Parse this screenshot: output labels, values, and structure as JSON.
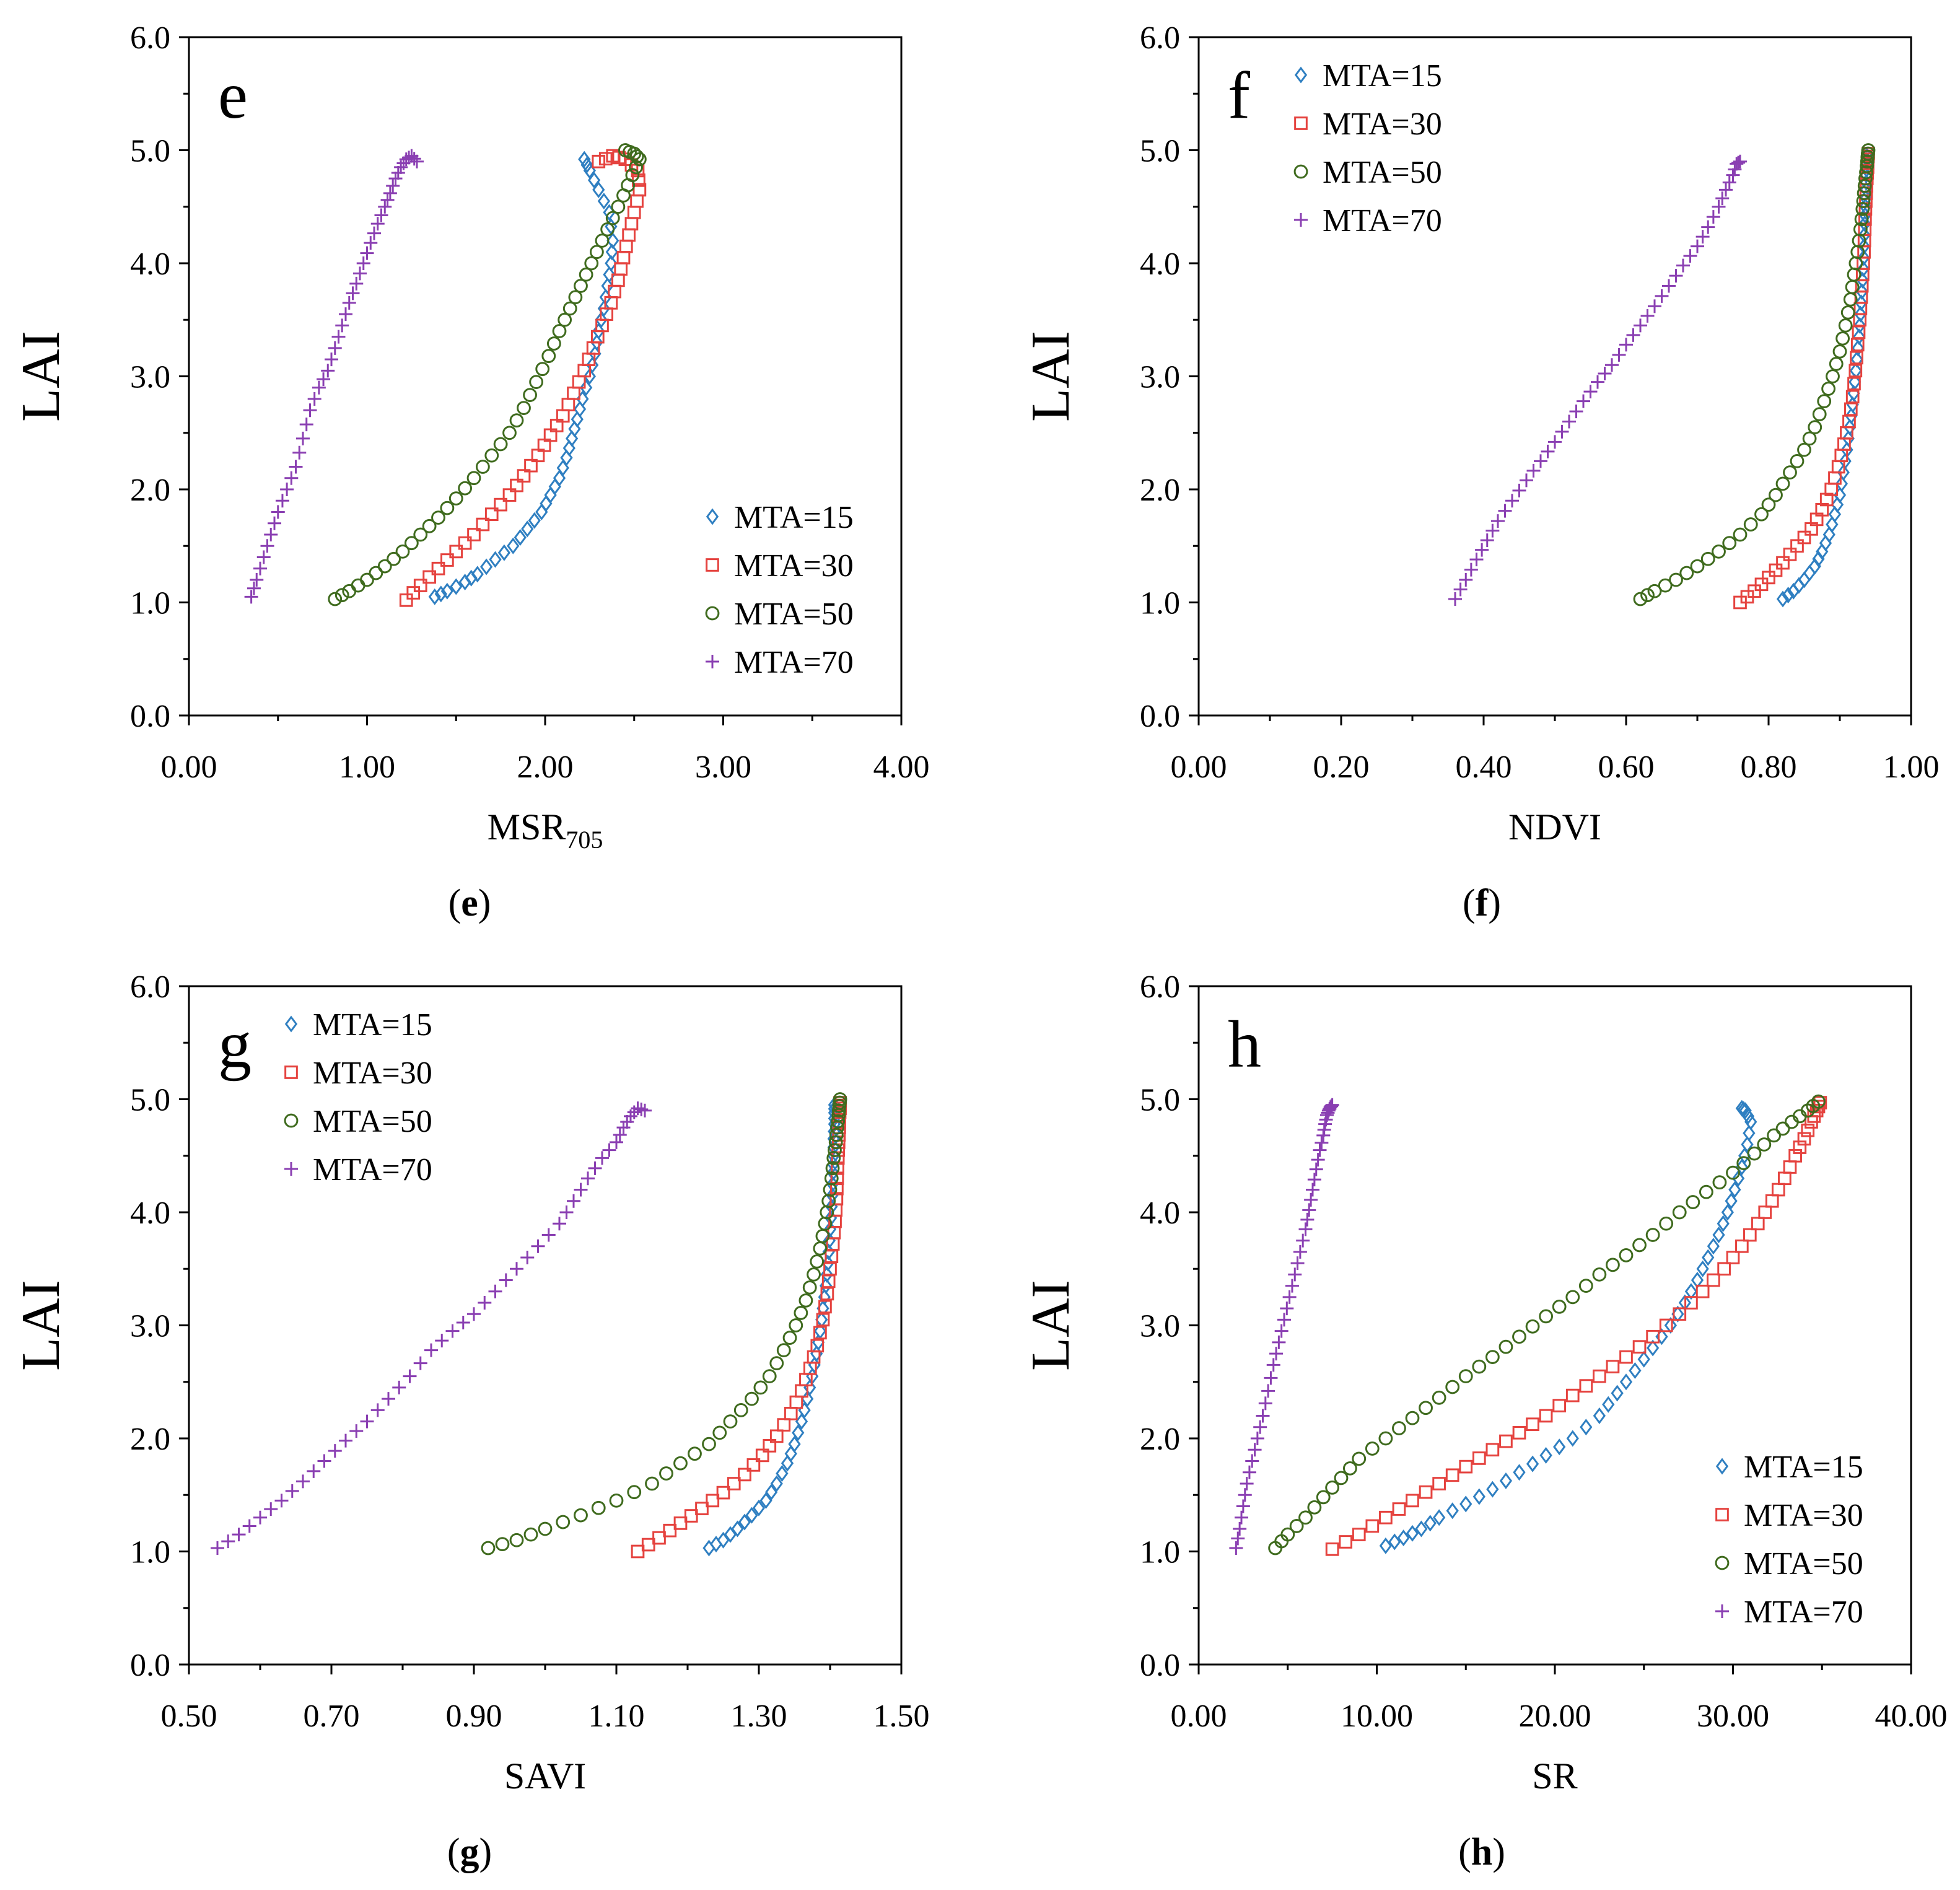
{
  "colors": {
    "MTA=15": "#2F7FC1",
    "MTA=30": "#E5433F",
    "MTA=50": "#3F6B1E",
    "MTA=70": "#8A3FB2"
  },
  "chart_data": [
    {
      "id": "e",
      "type": "scatter",
      "panel_letter": "e",
      "caption_letter": "e",
      "xlabel": "MSR",
      "xlabel_sub": "705",
      "ylabel": "LAI",
      "xlim": [
        0,
        4
      ],
      "ylim": [
        0,
        6
      ],
      "x_ticks": [
        "0.00",
        "1.00",
        "2.00",
        "3.00",
        "4.00"
      ],
      "y_ticks": [
        "0.0",
        "1.0",
        "2.0",
        "3.0",
        "4.0",
        "5.0",
        "6.0"
      ],
      "legend_position": "bottom-right",
      "series": [
        {
          "name": "MTA=15",
          "marker": "diamond",
          "x": [
            1.38,
            1.45,
            1.55,
            1.62,
            1.72,
            1.82,
            1.9,
            1.98,
            2.03,
            2.08,
            2.12,
            2.15,
            2.18,
            2.21,
            2.25,
            2.28,
            2.3,
            2.33,
            2.35,
            2.37,
            2.38,
            2.36,
            2.3,
            2.25,
            2.22
          ],
          "y": [
            1.05,
            1.1,
            1.18,
            1.25,
            1.38,
            1.5,
            1.65,
            1.8,
            1.95,
            2.1,
            2.28,
            2.45,
            2.62,
            2.8,
            3.0,
            3.2,
            3.4,
            3.6,
            3.8,
            4.0,
            4.2,
            4.45,
            4.65,
            4.82,
            4.92
          ]
        },
        {
          "name": "MTA=30",
          "marker": "square",
          "x": [
            1.22,
            1.3,
            1.4,
            1.5,
            1.6,
            1.7,
            1.8,
            1.88,
            1.96,
            2.03,
            2.1,
            2.16,
            2.22,
            2.27,
            2.32,
            2.37,
            2.41,
            2.44,
            2.47,
            2.5,
            2.53,
            2.52,
            2.45,
            2.38,
            2.3
          ],
          "y": [
            1.02,
            1.15,
            1.3,
            1.45,
            1.6,
            1.78,
            1.95,
            2.12,
            2.3,
            2.48,
            2.65,
            2.85,
            3.05,
            3.25,
            3.45,
            3.65,
            3.85,
            4.05,
            4.25,
            4.45,
            4.65,
            4.82,
            4.92,
            4.95,
            4.9
          ]
        },
        {
          "name": "MTA=50",
          "marker": "circle",
          "x": [
            0.82,
            0.9,
            1.0,
            1.1,
            1.2,
            1.3,
            1.4,
            1.5,
            1.6,
            1.7,
            1.8,
            1.88,
            1.95,
            2.02,
            2.08,
            2.14,
            2.2,
            2.26,
            2.32,
            2.38,
            2.44,
            2.49,
            2.53,
            2.5,
            2.45
          ],
          "y": [
            1.03,
            1.1,
            1.2,
            1.32,
            1.45,
            1.6,
            1.75,
            1.92,
            2.1,
            2.3,
            2.5,
            2.72,
            2.95,
            3.18,
            3.4,
            3.6,
            3.8,
            4.0,
            4.2,
            4.4,
            4.6,
            4.78,
            4.92,
            4.97,
            5.0
          ]
        },
        {
          "name": "MTA=70",
          "marker": "plus",
          "x": [
            0.35,
            0.38,
            0.42,
            0.46,
            0.5,
            0.55,
            0.6,
            0.64,
            0.68,
            0.73,
            0.78,
            0.82,
            0.86,
            0.9,
            0.94,
            0.98,
            1.02,
            1.06,
            1.1,
            1.13,
            1.16,
            1.19,
            1.22,
            1.25,
            1.28
          ],
          "y": [
            1.05,
            1.2,
            1.4,
            1.6,
            1.8,
            2.0,
            2.2,
            2.45,
            2.7,
            2.9,
            3.05,
            3.25,
            3.45,
            3.65,
            3.82,
            4.0,
            4.18,
            4.35,
            4.5,
            4.62,
            4.75,
            4.85,
            4.92,
            4.95,
            4.9
          ]
        }
      ]
    },
    {
      "id": "f",
      "type": "scatter",
      "panel_letter": "f",
      "caption_letter": "f",
      "xlabel": "NDVI",
      "xlabel_sub": "",
      "ylabel": "LAI",
      "xlim": [
        0,
        1
      ],
      "ylim": [
        0,
        6
      ],
      "x_ticks": [
        "0.00",
        "0.20",
        "0.40",
        "0.60",
        "0.80",
        "1.00"
      ],
      "y_ticks": [
        "0.0",
        "1.0",
        "2.0",
        "3.0",
        "4.0",
        "5.0",
        "6.0"
      ],
      "legend_position": "top-left",
      "series": [
        {
          "name": "MTA=15",
          "marker": "diamond",
          "x": [
            0.82,
            0.835,
            0.85,
            0.865,
            0.875,
            0.885,
            0.893,
            0.9,
            0.905,
            0.91,
            0.914,
            0.918,
            0.921,
            0.924,
            0.927,
            0.929,
            0.931,
            0.933,
            0.934,
            0.935,
            0.936,
            0.937,
            0.937,
            0.938,
            0.938
          ],
          "y": [
            1.03,
            1.1,
            1.2,
            1.32,
            1.45,
            1.6,
            1.78,
            1.95,
            2.15,
            2.35,
            2.55,
            2.75,
            2.95,
            3.15,
            3.35,
            3.55,
            3.75,
            3.95,
            4.15,
            4.35,
            4.5,
            4.65,
            4.78,
            4.88,
            4.95
          ]
        },
        {
          "name": "MTA=30",
          "marker": "square",
          "x": [
            0.76,
            0.78,
            0.8,
            0.82,
            0.84,
            0.86,
            0.875,
            0.888,
            0.898,
            0.906,
            0.913,
            0.918,
            0.922,
            0.925,
            0.928,
            0.93,
            0.932,
            0.934,
            0.935,
            0.936,
            0.937,
            0.938,
            0.939,
            0.939,
            0.94
          ],
          "y": [
            1.0,
            1.1,
            1.22,
            1.35,
            1.5,
            1.65,
            1.82,
            2.0,
            2.2,
            2.4,
            2.6,
            2.82,
            3.05,
            3.28,
            3.5,
            3.7,
            3.9,
            4.1,
            4.3,
            4.48,
            4.62,
            4.75,
            4.85,
            4.92,
            4.97
          ]
        },
        {
          "name": "MTA=50",
          "marker": "circle",
          "x": [
            0.62,
            0.64,
            0.67,
            0.7,
            0.73,
            0.76,
            0.79,
            0.81,
            0.83,
            0.85,
            0.865,
            0.878,
            0.89,
            0.9,
            0.908,
            0.915,
            0.92,
            0.925,
            0.929,
            0.932,
            0.934,
            0.936,
            0.938,
            0.939,
            0.94
          ],
          "y": [
            1.03,
            1.1,
            1.2,
            1.32,
            1.45,
            1.6,
            1.78,
            1.95,
            2.15,
            2.35,
            2.55,
            2.78,
            3.0,
            3.22,
            3.45,
            3.68,
            3.9,
            4.1,
            4.3,
            4.48,
            4.62,
            4.75,
            4.86,
            4.94,
            5.0
          ]
        },
        {
          "name": "MTA=70",
          "marker": "plus",
          "x": [
            0.36,
            0.375,
            0.39,
            0.405,
            0.42,
            0.44,
            0.46,
            0.48,
            0.5,
            0.52,
            0.54,
            0.56,
            0.58,
            0.6,
            0.62,
            0.64,
            0.66,
            0.68,
            0.7,
            0.715,
            0.73,
            0.74,
            0.75,
            0.755,
            0.76
          ],
          "y": [
            1.03,
            1.2,
            1.38,
            1.55,
            1.72,
            1.9,
            2.08,
            2.25,
            2.42,
            2.6,
            2.78,
            2.95,
            3.1,
            3.28,
            3.45,
            3.62,
            3.8,
            3.98,
            4.15,
            4.32,
            4.5,
            4.65,
            4.78,
            4.88,
            4.9
          ]
        }
      ]
    },
    {
      "id": "g",
      "type": "scatter",
      "panel_letter": "g",
      "caption_letter": "g",
      "xlabel": "SAVI",
      "xlabel_sub": "",
      "ylabel": "LAI",
      "xlim": [
        0.5,
        1.5
      ],
      "ylim": [
        0,
        6
      ],
      "x_ticks": [
        "0.50",
        "0.70",
        "0.90",
        "1.10",
        "1.30",
        "1.50"
      ],
      "y_ticks": [
        "0.0",
        "1.0",
        "2.0",
        "3.0",
        "4.0",
        "5.0",
        "6.0"
      ],
      "legend_position": "top-left",
      "series": [
        {
          "name": "MTA=15",
          "marker": "diamond",
          "x": [
            1.23,
            1.25,
            1.27,
            1.29,
            1.31,
            1.325,
            1.34,
            1.35,
            1.36,
            1.368,
            1.375,
            1.381,
            1.386,
            1.39,
            1.394,
            1.397,
            1.399,
            1.401,
            1.403,
            1.404,
            1.405,
            1.405,
            1.406,
            1.406,
            1.406
          ],
          "y": [
            1.03,
            1.1,
            1.2,
            1.32,
            1.45,
            1.6,
            1.78,
            1.95,
            2.15,
            2.35,
            2.55,
            2.75,
            2.95,
            3.15,
            3.35,
            3.55,
            3.75,
            3.95,
            4.15,
            4.35,
            4.5,
            4.65,
            4.78,
            4.88,
            4.95
          ]
        },
        {
          "name": "MTA=30",
          "marker": "square",
          "x": [
            1.13,
            1.16,
            1.19,
            1.22,
            1.25,
            1.28,
            1.305,
            1.325,
            1.345,
            1.36,
            1.372,
            1.382,
            1.39,
            1.396,
            1.4,
            1.404,
            1.407,
            1.409,
            1.41,
            1.411,
            1.412,
            1.413,
            1.413,
            1.414,
            1.414
          ],
          "y": [
            1.0,
            1.12,
            1.25,
            1.38,
            1.52,
            1.68,
            1.85,
            2.02,
            2.22,
            2.42,
            2.62,
            2.82,
            3.05,
            3.28,
            3.5,
            3.72,
            3.92,
            4.12,
            4.3,
            4.48,
            4.62,
            4.75,
            4.85,
            4.92,
            4.97
          ]
        },
        {
          "name": "MTA=50",
          "marker": "circle",
          "x": [
            0.92,
            0.96,
            1.0,
            1.05,
            1.1,
            1.15,
            1.19,
            1.23,
            1.26,
            1.29,
            1.315,
            1.335,
            1.352,
            1.366,
            1.377,
            1.386,
            1.393,
            1.398,
            1.402,
            1.405,
            1.408,
            1.41,
            1.412,
            1.413,
            1.414
          ],
          "y": [
            1.03,
            1.1,
            1.2,
            1.32,
            1.45,
            1.6,
            1.78,
            1.95,
            2.15,
            2.35,
            2.55,
            2.78,
            3.0,
            3.22,
            3.45,
            3.68,
            3.9,
            4.1,
            4.3,
            4.48,
            4.62,
            4.75,
            4.86,
            4.94,
            5.0
          ]
        },
        {
          "name": "MTA=70",
          "marker": "plus",
          "x": [
            0.54,
            0.57,
            0.6,
            0.63,
            0.66,
            0.69,
            0.72,
            0.75,
            0.78,
            0.81,
            0.84,
            0.87,
            0.9,
            0.93,
            0.96,
            0.99,
            1.02,
            1.04,
            1.06,
            1.08,
            1.1,
            1.11,
            1.12,
            1.13,
            1.14
          ],
          "y": [
            1.03,
            1.15,
            1.3,
            1.45,
            1.62,
            1.8,
            1.98,
            2.15,
            2.35,
            2.55,
            2.78,
            2.95,
            3.1,
            3.3,
            3.5,
            3.7,
            3.9,
            4.1,
            4.3,
            4.48,
            4.62,
            4.75,
            4.85,
            4.92,
            4.9
          ]
        }
      ]
    },
    {
      "id": "h",
      "type": "scatter",
      "panel_letter": "h",
      "caption_letter": "h",
      "xlabel": "SR",
      "xlabel_sub": "",
      "ylabel": "LAI",
      "xlim": [
        0,
        40
      ],
      "ylim": [
        0,
        6
      ],
      "x_ticks": [
        "0.00",
        "10.00",
        "20.00",
        "30.00",
        "40.00"
      ],
      "y_ticks": [
        "0.0",
        "1.0",
        "2.0",
        "3.0",
        "4.0",
        "5.0",
        "6.0"
      ],
      "legend_position": "bottom-right",
      "series": [
        {
          "name": "MTA=15",
          "marker": "diamond",
          "x": [
            10.5,
            11.5,
            12.5,
            13.5,
            15.0,
            16.5,
            18.0,
            19.5,
            21.0,
            22.5,
            23.5,
            24.5,
            25.5,
            26.5,
            27.3,
            28.0,
            28.6,
            29.2,
            29.7,
            30.1,
            30.5,
            30.8,
            31.0,
            30.7,
            30.5
          ],
          "y": [
            1.05,
            1.12,
            1.2,
            1.3,
            1.42,
            1.55,
            1.7,
            1.85,
            2.0,
            2.2,
            2.4,
            2.6,
            2.8,
            3.0,
            3.2,
            3.4,
            3.6,
            3.8,
            4.0,
            4.2,
            4.4,
            4.6,
            4.8,
            4.9,
            4.92
          ]
        },
        {
          "name": "MTA=30",
          "marker": "square",
          "x": [
            7.5,
            9.0,
            10.5,
            12.0,
            13.5,
            15.0,
            16.5,
            18.0,
            19.5,
            21.0,
            22.5,
            24.0,
            25.5,
            27.0,
            28.3,
            29.5,
            30.5,
            31.4,
            32.2,
            32.9,
            33.5,
            34.0,
            34.4,
            34.7,
            34.9
          ],
          "y": [
            1.02,
            1.15,
            1.3,
            1.45,
            1.6,
            1.75,
            1.9,
            2.05,
            2.2,
            2.38,
            2.55,
            2.72,
            2.9,
            3.1,
            3.3,
            3.5,
            3.7,
            3.9,
            4.1,
            4.3,
            4.5,
            4.65,
            4.8,
            4.9,
            4.97
          ]
        },
        {
          "name": "MTA=50",
          "marker": "circle",
          "x": [
            4.3,
            5.0,
            6.0,
            7.0,
            8.0,
            9.0,
            10.5,
            12.0,
            13.5,
            15.0,
            16.5,
            18.0,
            19.5,
            21.0,
            22.5,
            24.0,
            25.5,
            27.0,
            28.5,
            30.0,
            31.2,
            32.3,
            33.3,
            34.2,
            34.8
          ],
          "y": [
            1.03,
            1.15,
            1.3,
            1.48,
            1.65,
            1.82,
            2.0,
            2.18,
            2.36,
            2.55,
            2.72,
            2.9,
            3.08,
            3.25,
            3.45,
            3.62,
            3.8,
            4.0,
            4.18,
            4.35,
            4.52,
            4.68,
            4.8,
            4.9,
            4.98
          ]
        },
        {
          "name": "MTA=70",
          "marker": "plus",
          "x": [
            2.1,
            2.3,
            2.5,
            2.7,
            3.0,
            3.3,
            3.6,
            3.9,
            4.2,
            4.5,
            4.8,
            5.1,
            5.4,
            5.7,
            6.0,
            6.2,
            6.4,
            6.6,
            6.8,
            7.0,
            7.1,
            7.2,
            7.3,
            7.4,
            7.5
          ],
          "y": [
            1.03,
            1.2,
            1.4,
            1.6,
            1.8,
            2.0,
            2.2,
            2.42,
            2.65,
            2.85,
            3.05,
            3.25,
            3.45,
            3.65,
            3.85,
            4.02,
            4.2,
            4.38,
            4.55,
            4.68,
            4.78,
            4.86,
            4.9,
            4.93,
            4.95
          ]
        }
      ]
    }
  ]
}
